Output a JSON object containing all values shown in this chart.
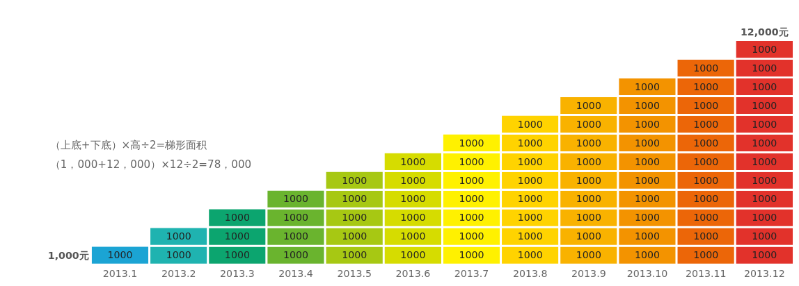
{
  "chart_data": {
    "type": "bar",
    "stacked": true,
    "data_labels": true,
    "grid": false,
    "categories": [
      "2013.1",
      "2013.2",
      "2013.3",
      "2013.4",
      "2013.5",
      "2013.6",
      "2013.7",
      "2013.8",
      "2013.9",
      "2013.10",
      "2013.11",
      "2013.12"
    ],
    "series": [
      {
        "colors": [
          "#1ba4d4",
          "#1fb3b0",
          "#0ca56f",
          "#6ab42e",
          "#a7c813",
          "#d6dc00",
          "#fff100",
          "#ffd300",
          "#f9b200",
          "#f39300",
          "#ec6608",
          "#e2322b"
        ],
        "values": [
          1000,
          1000,
          1000,
          1000,
          1000,
          1000,
          1000,
          1000,
          1000,
          1000,
          1000,
          1000
        ]
      },
      {
        "colors": [
          "#1ba4d4",
          "#1fb3b0",
          "#0ca56f",
          "#6ab42e",
          "#a7c813",
          "#d6dc00",
          "#fff100",
          "#ffd300",
          "#f9b200",
          "#f39300",
          "#ec6608",
          "#e2322b"
        ],
        "values": [
          null,
          1000,
          1000,
          1000,
          1000,
          1000,
          1000,
          1000,
          1000,
          1000,
          1000,
          1000
        ]
      },
      {
        "colors": [
          "#1ba4d4",
          "#1fb3b0",
          "#0ca56f",
          "#6ab42e",
          "#a7c813",
          "#d6dc00",
          "#fff100",
          "#ffd300",
          "#f9b200",
          "#f39300",
          "#ec6608",
          "#e2322b"
        ],
        "values": [
          null,
          null,
          1000,
          1000,
          1000,
          1000,
          1000,
          1000,
          1000,
          1000,
          1000,
          1000
        ]
      },
      {
        "colors": [
          "#1ba4d4",
          "#1fb3b0",
          "#0ca56f",
          "#6ab42e",
          "#a7c813",
          "#d6dc00",
          "#fff100",
          "#ffd300",
          "#f9b200",
          "#f39300",
          "#ec6608",
          "#e2322b"
        ],
        "values": [
          null,
          null,
          null,
          1000,
          1000,
          1000,
          1000,
          1000,
          1000,
          1000,
          1000,
          1000
        ]
      },
      {
        "colors": [
          "#1ba4d4",
          "#1fb3b0",
          "#0ca56f",
          "#6ab42e",
          "#a7c813",
          "#d6dc00",
          "#fff100",
          "#ffd300",
          "#f9b200",
          "#f39300",
          "#ec6608",
          "#e2322b"
        ],
        "values": [
          null,
          null,
          null,
          null,
          1000,
          1000,
          1000,
          1000,
          1000,
          1000,
          1000,
          1000
        ]
      },
      {
        "colors": [
          "#1ba4d4",
          "#1fb3b0",
          "#0ca56f",
          "#6ab42e",
          "#a7c813",
          "#d6dc00",
          "#fff100",
          "#ffd300",
          "#f9b200",
          "#f39300",
          "#ec6608",
          "#e2322b"
        ],
        "values": [
          null,
          null,
          null,
          null,
          null,
          1000,
          1000,
          1000,
          1000,
          1000,
          1000,
          1000
        ]
      },
      {
        "colors": [
          "#1ba4d4",
          "#1fb3b0",
          "#0ca56f",
          "#6ab42e",
          "#a7c813",
          "#d6dc00",
          "#fff100",
          "#ffd300",
          "#f9b200",
          "#f39300",
          "#ec6608",
          "#e2322b"
        ],
        "values": [
          null,
          null,
          null,
          null,
          null,
          null,
          1000,
          1000,
          1000,
          1000,
          1000,
          1000
        ]
      },
      {
        "colors": [
          "#1ba4d4",
          "#1fb3b0",
          "#0ca56f",
          "#6ab42e",
          "#a7c813",
          "#d6dc00",
          "#fff100",
          "#ffd300",
          "#f9b200",
          "#f39300",
          "#ec6608",
          "#e2322b"
        ],
        "values": [
          null,
          null,
          null,
          null,
          null,
          null,
          null,
          1000,
          1000,
          1000,
          1000,
          1000
        ]
      },
      {
        "colors": [
          "#1ba4d4",
          "#1fb3b0",
          "#0ca56f",
          "#6ab42e",
          "#a7c813",
          "#d6dc00",
          "#fff100",
          "#ffd300",
          "#f9b200",
          "#f39300",
          "#ec6608",
          "#e2322b"
        ],
        "values": [
          null,
          null,
          null,
          null,
          null,
          null,
          null,
          null,
          1000,
          1000,
          1000,
          1000
        ]
      },
      {
        "colors": [
          "#1ba4d4",
          "#1fb3b0",
          "#0ca56f",
          "#6ab42e",
          "#a7c813",
          "#d6dc00",
          "#fff100",
          "#ffd300",
          "#f9b200",
          "#f39300",
          "#ec6608",
          "#e2322b"
        ],
        "values": [
          null,
          null,
          null,
          null,
          null,
          null,
          null,
          null,
          null,
          1000,
          1000,
          1000
        ]
      },
      {
        "colors": [
          "#1ba4d4",
          "#1fb3b0",
          "#0ca56f",
          "#6ab42e",
          "#a7c813",
          "#d6dc00",
          "#fff100",
          "#ffd300",
          "#f9b200",
          "#f39300",
          "#ec6608",
          "#e2322b"
        ],
        "values": [
          null,
          null,
          null,
          null,
          null,
          null,
          null,
          null,
          null,
          null,
          1000,
          1000
        ]
      },
      {
        "colors": [
          "#1ba4d4",
          "#1fb3b0",
          "#0ca56f",
          "#6ab42e",
          "#a7c813",
          "#d6dc00",
          "#fff100",
          "#ffd300",
          "#f9b200",
          "#f39300",
          "#ec6608",
          "#e2322b"
        ],
        "values": [
          null,
          null,
          null,
          null,
          null,
          null,
          null,
          null,
          null,
          null,
          null,
          1000
        ]
      }
    ],
    "annotations": [
      "12,000元",
      "（上底+下底）×高÷2=梯形面积",
      "（1，000+12，000）×12÷2=78，000",
      "1,000元"
    ]
  }
}
